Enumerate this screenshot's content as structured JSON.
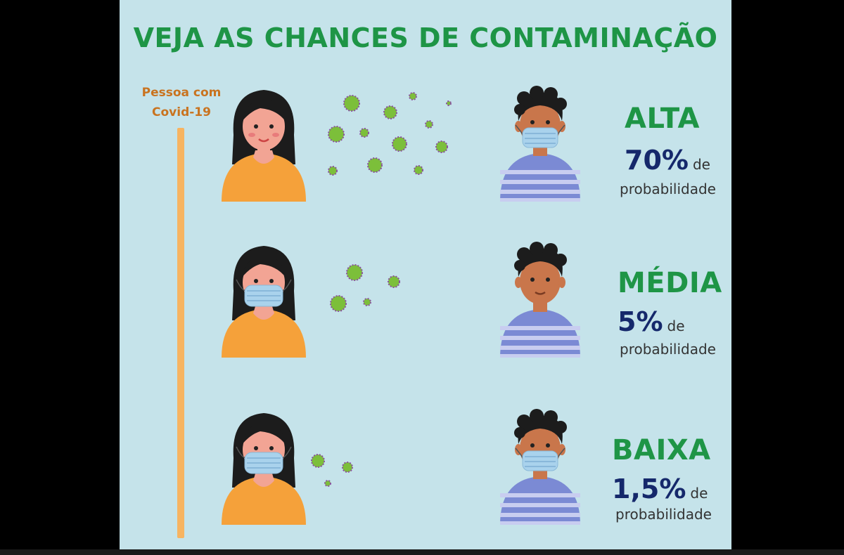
{
  "title": "VEJA AS CHANCES DE CONTAMINAÇÃO",
  "source_label": [
    "Pessoa com",
    "Covid-19"
  ],
  "colors": {
    "background": "#c5e3ea",
    "title_green": "#1e9546",
    "percent_navy": "#15286b",
    "timeline_orange": "#f7b461",
    "virus_green": "#7cbf3a",
    "virus_spikes": "#8a4fa0"
  },
  "rows": [
    {
      "level": "ALTA",
      "percent": "70%",
      "de": "de",
      "probability": "probabilidade",
      "infected_mask": false,
      "receiver_mask": true,
      "virus_icons": "many"
    },
    {
      "level": "MÉDIA",
      "percent": "5%",
      "de": "de",
      "probability": "probabilidade",
      "infected_mask": true,
      "receiver_mask": false,
      "virus_icons": "few"
    },
    {
      "level": "BAIXA",
      "percent": "1,5%",
      "de": "de",
      "probability": "probabilidade",
      "infected_mask": true,
      "receiver_mask": true,
      "virus_icons": "minimal"
    }
  ]
}
